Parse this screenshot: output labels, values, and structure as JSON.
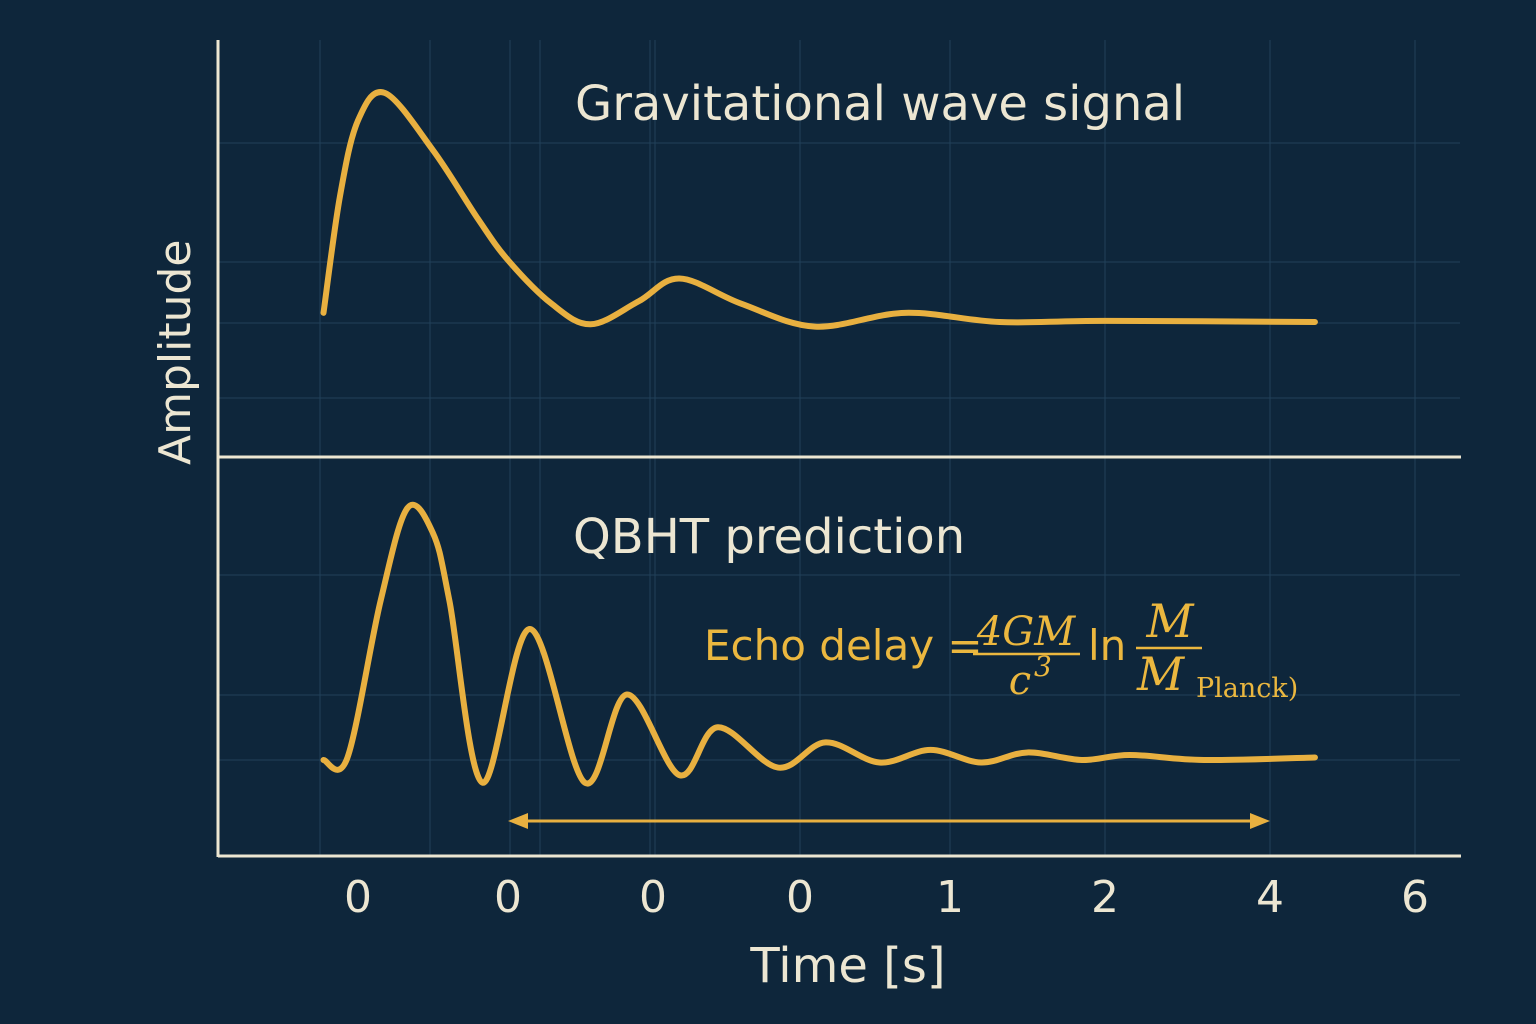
{
  "chart_data": {
    "type": "line",
    "xlabel": "Time [s]",
    "ylabel": "Amplitude",
    "x_tick_labels": [
      "0",
      "0",
      "0",
      "0",
      "1",
      "2",
      "4",
      "6"
    ],
    "grid": true,
    "colors": {
      "background": "#0e263b",
      "curve": "#e8b040",
      "text": "#ece6d2",
      "grid": "#21405a"
    },
    "panels": [
      {
        "title": "Gravitational wave signal",
        "series": [
          {
            "points": [
              [
                -0.23,
                0.04
              ],
              [
                -0.12,
                0.55
              ],
              [
                0.0,
                0.88
              ],
              [
                0.18,
                1.0
              ],
              [
                0.5,
                0.75
              ],
              [
                0.8,
                0.45
              ],
              [
                1.0,
                0.27
              ],
              [
                1.3,
                0.08
              ],
              [
                1.57,
                -0.01
              ],
              [
                1.9,
                0.09
              ],
              [
                2.18,
                0.19
              ],
              [
                2.6,
                0.08
              ],
              [
                3.1,
                -0.02
              ],
              [
                3.7,
                0.04
              ],
              [
                4.32,
                0.0
              ],
              [
                5.0,
                0.005
              ],
              [
                6.31,
                0.0
              ]
            ]
          }
        ]
      },
      {
        "title": "QBHT prediction",
        "series": [
          {
            "points": [
              [
                -0.23,
                0.0
              ],
              [
                -0.07,
                0.01
              ],
              [
                0.15,
                0.63
              ],
              [
                0.33,
                1.0
              ],
              [
                0.5,
                0.9
              ],
              [
                0.61,
                0.63
              ],
              [
                0.83,
                -0.09
              ],
              [
                1.15,
                0.52
              ],
              [
                1.53,
                -0.09
              ],
              [
                1.82,
                0.26
              ],
              [
                2.18,
                -0.06
              ],
              [
                2.44,
                0.13
              ],
              [
                2.85,
                -0.03
              ],
              [
                3.17,
                0.07
              ],
              [
                3.53,
                -0.01
              ],
              [
                3.87,
                0.04
              ],
              [
                4.2,
                -0.01
              ],
              [
                4.5,
                0.03
              ],
              [
                4.85,
                0.0
              ],
              [
                5.15,
                0.02
              ],
              [
                5.6,
                0.0
              ],
              [
                6.31,
                0.01
              ]
            ]
          }
        ],
        "annotation": {
          "prefix": "Echo delay =",
          "frac1_num": "4GM",
          "frac1_den": "c",
          "frac1_den_exp": "3",
          "ln": "ln",
          "frac2_num": "M",
          "frac2_den": "M",
          "frac2_den_sub": "Planck)"
        },
        "arrow_range_ticks": [
          1,
          6
        ]
      }
    ]
  }
}
